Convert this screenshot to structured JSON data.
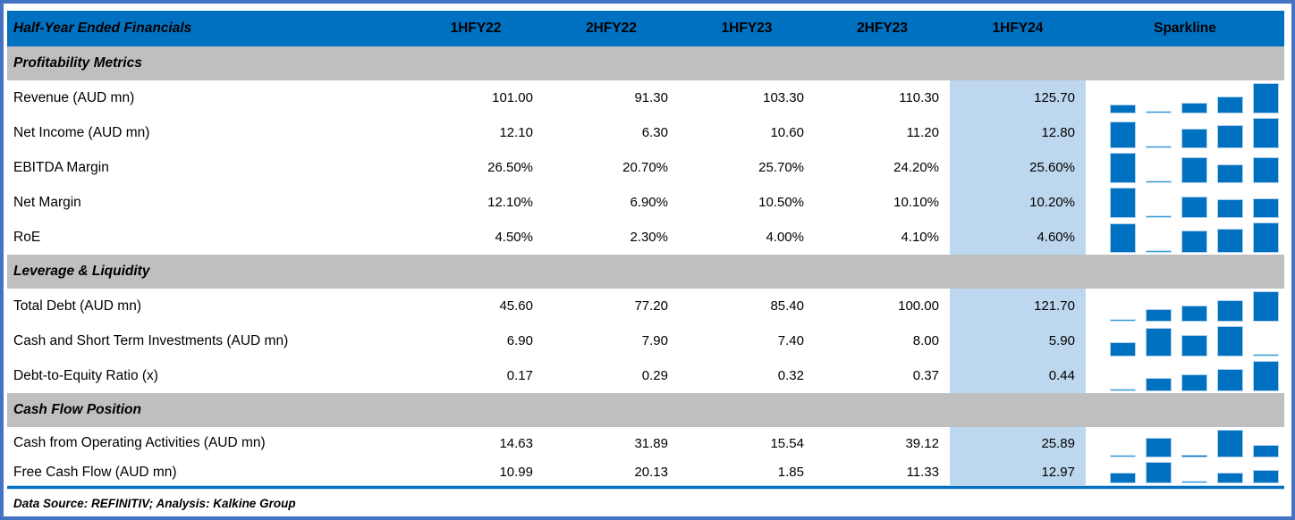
{
  "chart_data": {
    "type": "table",
    "title": "Half-Year Ended Financials",
    "columns": [
      "1HFY22",
      "2HFY22",
      "1HFY23",
      "2HFY23",
      "1HFY24"
    ],
    "sparkline_column": "Sparkline",
    "highlighted_column": "1HFY24",
    "sparkline_type": "bar",
    "sparkline_scaling": "min-max",
    "sections": [
      {
        "title": "Profitability Metrics",
        "rows": [
          {
            "label": "Revenue (AUD mn)",
            "cells": [
              "101.00",
              "91.30",
              "103.30",
              "110.30",
              "125.70"
            ]
          },
          {
            "label": "Net Income (AUD mn)",
            "cells": [
              "12.10",
              "6.30",
              "10.60",
              "11.20",
              "12.80"
            ]
          },
          {
            "label": "EBITDA Margin",
            "cells": [
              "26.50%",
              "20.70%",
              "25.70%",
              "24.20%",
              "25.60%"
            ]
          },
          {
            "label": "Net Margin",
            "cells": [
              "12.10%",
              "6.90%",
              "10.50%",
              "10.10%",
              "10.20%"
            ]
          },
          {
            "label": "RoE",
            "cells": [
              "4.50%",
              "2.30%",
              "4.00%",
              "4.10%",
              "4.60%"
            ]
          }
        ]
      },
      {
        "title": "Leverage & Liquidity",
        "rows": [
          {
            "label": "Total Debt (AUD mn)",
            "cells": [
              "45.60",
              "77.20",
              "85.40",
              "100.00",
              "121.70"
            ]
          },
          {
            "label": "Cash and Short Term Investments (AUD mn)",
            "cells": [
              "6.90",
              "7.90",
              "7.40",
              "8.00",
              "5.90"
            ]
          },
          {
            "label": "Debt-to-Equity Ratio (x)",
            "cells": [
              "0.17",
              "0.29",
              "0.32",
              "0.37",
              "0.44"
            ]
          }
        ]
      },
      {
        "title": "Cash Flow Position",
        "rows": [
          {
            "label": "Cash from Operating Activities (AUD mn)",
            "cells": [
              "14.63",
              "31.89",
              "15.54",
              "39.12",
              "25.89"
            ]
          },
          {
            "label": "Free Cash Flow (AUD mn)",
            "cells": [
              "10.99",
              "20.13",
              "1.85",
              "11.33",
              "12.97"
            ]
          }
        ]
      }
    ]
  },
  "footer": {
    "text": "Data Source: REFINITIV; Analysis: Kalkine Group"
  },
  "colors": {
    "frame": "#4472C4",
    "header_bg": "#0070C0",
    "header_text": "#FFFFFF",
    "section_band_bg": "#BFBFBF",
    "highlight_column_bg": "#BDD7EE",
    "sparkline_bar": "#0070C0",
    "sparkline_min_bar": "#3399DB",
    "footer_rule": "#0070C0",
    "text": "#000000"
  }
}
